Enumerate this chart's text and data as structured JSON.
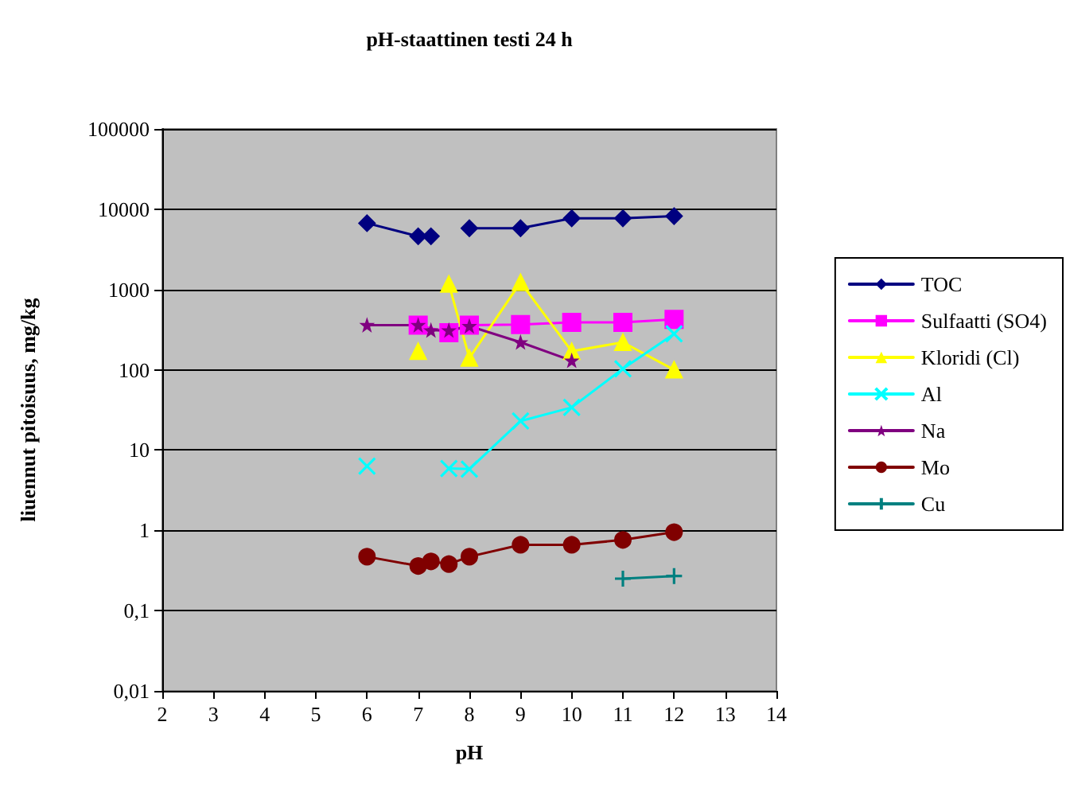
{
  "chart_data": {
    "type": "line",
    "title": "pH-staattinen testi 24 h",
    "xlabel": "pH",
    "ylabel": "liuennut pitoisuus, mg/kg",
    "x": [
      6,
      7,
      7.25,
      7.6,
      8,
      9,
      10,
      11,
      12
    ],
    "series": [
      {
        "name": "TOC",
        "color": "#000080",
        "marker": "diamond",
        "values": [
          6700,
          4600,
          4600,
          null,
          5800,
          5800,
          7700,
          7700,
          8200
        ]
      },
      {
        "name": "Sulfaatti (SO4)",
        "color": "#ff00ff",
        "marker": "square",
        "x": [
          7,
          7.6,
          8,
          9,
          10,
          11,
          12
        ],
        "values": [
          360,
          290,
          360,
          365,
          390,
          390,
          425
        ]
      },
      {
        "name": "Kloridi (Cl)",
        "color": "#ffff00",
        "marker": "triangle",
        "values": [
          null,
          170,
          null,
          1170,
          140,
          1230,
          170,
          220,
          100
        ]
      },
      {
        "name": "Al",
        "color": "#00ffff",
        "marker": "x",
        "values": [
          6.3,
          null,
          null,
          5.9,
          5.8,
          23,
          34,
          103,
          280
        ]
      },
      {
        "name": "Na",
        "color": "#800080",
        "marker": "star",
        "x": [
          6,
          7,
          7.25,
          7.6,
          8,
          9,
          10
        ],
        "values": [
          360,
          360,
          310,
          310,
          350,
          220,
          130
        ]
      },
      {
        "name": "Mo",
        "color": "#800000",
        "marker": "circle",
        "x": [
          6,
          7,
          7.25,
          7.6,
          8,
          9,
          10,
          11,
          12
        ],
        "values": [
          0.47,
          0.36,
          0.41,
          0.38,
          0.47,
          0.66,
          0.66,
          0.76,
          0.95
        ]
      },
      {
        "name": "Cu",
        "color": "#008080",
        "marker": "cross",
        "x": [
          11,
          12
        ],
        "values": [
          0.25,
          0.27
        ]
      }
    ],
    "log": "y",
    "xlim": [
      2,
      14
    ],
    "xticks": [
      2,
      3,
      4,
      5,
      6,
      7,
      8,
      9,
      10,
      11,
      12,
      13,
      14
    ],
    "ylim": [
      0.01,
      100000
    ],
    "yticks": [
      {
        "value": 0.01,
        "label": "0,01"
      },
      {
        "value": 0.1,
        "label": "0,1"
      },
      1,
      10,
      100,
      1000,
      10000,
      100000
    ],
    "grid": "y",
    "legend": "right",
    "line_style": "solid"
  }
}
